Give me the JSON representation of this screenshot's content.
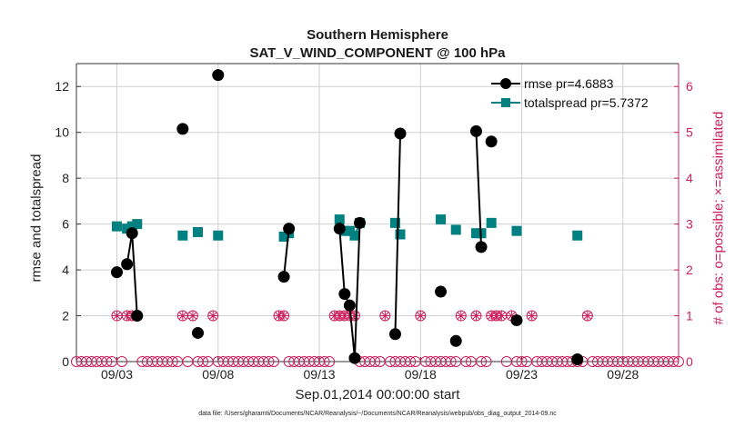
{
  "chart_data": {
    "type": "line",
    "title": "Southern Hemisphere",
    "subtitle": "SAT_V_WIND_COMPONENT @ 100 hPa",
    "xlabel": "Sep.01,2014 00:00:00 start",
    "ylabel": "rmse and totalspread",
    "ylabel_right": "# of obs: o=possible; ×=assimilated",
    "footer": "data file: /Users/gharamti/Documents/NCAR/Reanalysis/~/Documents/NCAR/Reanalysis/webpub/obs_diag_output_2014-09.nc",
    "xlim": [
      1.0,
      30.75
    ],
    "ylim": [
      0,
      13
    ],
    "ylim_right": [
      0,
      6.5
    ],
    "grid": true,
    "legend_position": "top-right",
    "x_ticks": [
      3,
      8,
      13,
      18,
      23,
      28
    ],
    "x_tick_labels": [
      "09/03",
      "09/08",
      "09/13",
      "09/18",
      "09/23",
      "09/28"
    ],
    "y_ticks": [
      0,
      2,
      4,
      6,
      8,
      10,
      12
    ],
    "y_right_ticks": [
      0,
      1,
      2,
      3,
      4,
      5,
      6
    ],
    "colors": {
      "rmse": "#000000",
      "totalspread": "#008080",
      "obs": "#cc1f5c",
      "grid": "#d0d0d0"
    },
    "series": [
      {
        "name": "rmse pr=4.6883",
        "points": [
          [
            3.0,
            3.9
          ],
          [
            3.5,
            4.25
          ],
          [
            3.75,
            5.6
          ],
          [
            4.0,
            2.0
          ],
          [
            6.25,
            10.15
          ],
          [
            7.0,
            1.25
          ],
          [
            8.0,
            12.5
          ],
          [
            11.25,
            3.7
          ],
          [
            11.5,
            5.8
          ],
          [
            14.0,
            5.8
          ],
          [
            14.25,
            2.95
          ],
          [
            14.5,
            2.45
          ],
          [
            14.75,
            0.15
          ],
          [
            15.0,
            6.05
          ],
          [
            16.75,
            1.2
          ],
          [
            17.0,
            9.95
          ],
          [
            19.0,
            3.05
          ],
          [
            19.75,
            0.9
          ],
          [
            20.75,
            10.05
          ],
          [
            21.0,
            5.0
          ],
          [
            21.5,
            9.6
          ],
          [
            22.75,
            1.8
          ],
          [
            25.75,
            0.1
          ]
        ]
      },
      {
        "name": "totalspread pr=5.7372",
        "points": [
          [
            3.0,
            5.9
          ],
          [
            3.5,
            5.8
          ],
          [
            3.75,
            5.9
          ],
          [
            4.0,
            6.0
          ],
          [
            6.25,
            5.5
          ],
          [
            7.0,
            5.65
          ],
          [
            8.0,
            5.5
          ],
          [
            11.25,
            5.45
          ],
          [
            11.5,
            5.6
          ],
          [
            14.0,
            6.2
          ],
          [
            14.25,
            5.7
          ],
          [
            14.5,
            5.7
          ],
          [
            14.75,
            5.5
          ],
          [
            15.0,
            6.05
          ],
          [
            16.75,
            6.05
          ],
          [
            17.0,
            5.55
          ],
          [
            19.0,
            6.2
          ],
          [
            19.75,
            5.75
          ],
          [
            20.75,
            5.6
          ],
          [
            21.0,
            5.6
          ],
          [
            21.5,
            6.05
          ],
          [
            22.75,
            5.7
          ],
          [
            25.75,
            5.5
          ]
        ]
      }
    ],
    "obs_counts_x_start": 1.0,
    "obs_counts_x_step": 0.25,
    "obs_counts": [
      0,
      0,
      0,
      0,
      0,
      0,
      0,
      0,
      1,
      0,
      1,
      1,
      1,
      0,
      0,
      0,
      0,
      0,
      0,
      0,
      0,
      1,
      0,
      1,
      0,
      0,
      0,
      1,
      0,
      0,
      0,
      0,
      0,
      0,
      0,
      0,
      0,
      0,
      0,
      0,
      1,
      1,
      0,
      0,
      0,
      0,
      0,
      0,
      0,
      0,
      0,
      1,
      1,
      1,
      1,
      1,
      0,
      0,
      0,
      0,
      0,
      1,
      0,
      0,
      0,
      0,
      0,
      0,
      1,
      0,
      0,
      0,
      0,
      0,
      0,
      0,
      1,
      0,
      0,
      1,
      0,
      0,
      1,
      1,
      1,
      0,
      1,
      0,
      0,
      0,
      1,
      0,
      0,
      0,
      0,
      0,
      0,
      0,
      0,
      0,
      0,
      1,
      0,
      0,
      0,
      0,
      0,
      0,
      0,
      0,
      0,
      0,
      0,
      0,
      0,
      0,
      0,
      0,
      0,
      0
    ]
  },
  "legend": {
    "rmse_label": "rmse pr=4.6883",
    "totalspread_label": "totalspread pr=5.7372"
  }
}
